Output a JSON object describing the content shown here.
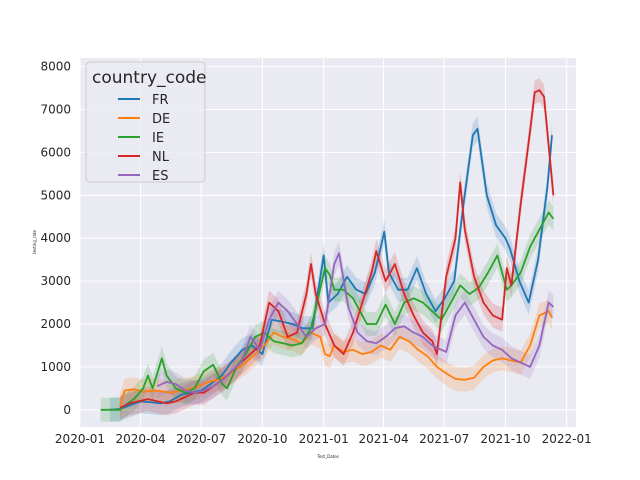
{
  "chart_data": {
    "type": "line",
    "xlabel": "Test_Dates",
    "ylabel": "testing_rate",
    "xlim": [
      "2020-01-01",
      "2022-01-15"
    ],
    "ylim": [
      -400,
      8200
    ],
    "grid": true,
    "x_ticks": [
      "2020-01",
      "2020-04",
      "2020-07",
      "2020-10",
      "2021-01",
      "2021-04",
      "2021-07",
      "2021-10",
      "2022-01"
    ],
    "y_ticks": [
      0,
      1000,
      2000,
      3000,
      4000,
      5000,
      6000,
      7000,
      8000
    ],
    "legend": {
      "title": "country_code",
      "placement": "top-left"
    },
    "series": [
      {
        "name": "FR",
        "color": "#1f77b4",
        "points": [
          [
            "2020-02-15",
            0
          ],
          [
            "2020-03-01",
            20
          ],
          [
            "2020-03-15",
            100
          ],
          [
            "2020-04-01",
            200
          ],
          [
            "2020-04-15",
            180
          ],
          [
            "2020-05-01",
            150
          ],
          [
            "2020-05-15",
            200
          ],
          [
            "2020-06-01",
            350
          ],
          [
            "2020-06-15",
            400
          ],
          [
            "2020-07-01",
            450
          ],
          [
            "2020-07-15",
            600
          ],
          [
            "2020-08-01",
            800
          ],
          [
            "2020-08-15",
            1100
          ],
          [
            "2020-09-01",
            1400
          ],
          [
            "2020-09-15",
            1500
          ],
          [
            "2020-10-01",
            1300
          ],
          [
            "2020-10-15",
            2100
          ],
          [
            "2020-11-01",
            2050
          ],
          [
            "2020-11-15",
            2000
          ],
          [
            "2020-12-01",
            1900
          ],
          [
            "2020-12-15",
            1900
          ],
          [
            "2021-01-01",
            3600
          ],
          [
            "2021-01-08",
            2500
          ],
          [
            "2021-01-22",
            2700
          ],
          [
            "2021-02-05",
            3100
          ],
          [
            "2021-02-19",
            2800
          ],
          [
            "2021-03-05",
            2700
          ],
          [
            "2021-03-19",
            3200
          ],
          [
            "2021-04-02",
            4150
          ],
          [
            "2021-04-09",
            3200
          ],
          [
            "2021-04-23",
            2800
          ],
          [
            "2021-05-07",
            2800
          ],
          [
            "2021-05-21",
            3300
          ],
          [
            "2021-06-04",
            2700
          ],
          [
            "2021-06-18",
            2300
          ],
          [
            "2021-07-02",
            2600
          ],
          [
            "2021-07-16",
            3000
          ],
          [
            "2021-07-30",
            4800
          ],
          [
            "2021-08-13",
            6400
          ],
          [
            "2021-08-20",
            6550
          ],
          [
            "2021-09-03",
            5000
          ],
          [
            "2021-09-17",
            4300
          ],
          [
            "2021-10-01",
            4000
          ],
          [
            "2021-10-08",
            3750
          ],
          [
            "2021-10-22",
            3000
          ],
          [
            "2021-11-05",
            2500
          ],
          [
            "2021-11-19",
            3500
          ],
          [
            "2021-12-03",
            5200
          ],
          [
            "2021-12-10",
            6400
          ]
        ]
      },
      {
        "name": "DE",
        "color": "#ff7f0e",
        "points": [
          [
            "2020-03-01",
            100
          ],
          [
            "2020-03-08",
            450
          ],
          [
            "2020-03-22",
            480
          ],
          [
            "2020-04-05",
            420
          ],
          [
            "2020-04-19",
            450
          ],
          [
            "2020-05-03",
            430
          ],
          [
            "2020-05-17",
            400
          ],
          [
            "2020-05-31",
            450
          ],
          [
            "2020-06-14",
            480
          ],
          [
            "2020-06-28",
            550
          ],
          [
            "2020-07-12",
            650
          ],
          [
            "2020-07-26",
            700
          ],
          [
            "2020-08-09",
            800
          ],
          [
            "2020-08-23",
            950
          ],
          [
            "2020-09-06",
            1100
          ],
          [
            "2020-09-20",
            1300
          ],
          [
            "2020-10-04",
            1500
          ],
          [
            "2020-10-18",
            1800
          ],
          [
            "2020-11-01",
            1700
          ],
          [
            "2020-11-15",
            1650
          ],
          [
            "2020-11-29",
            1550
          ],
          [
            "2020-12-13",
            1800
          ],
          [
            "2020-12-27",
            1700
          ],
          [
            "2021-01-03",
            1300
          ],
          [
            "2021-01-10",
            1250
          ],
          [
            "2021-01-17",
            1500
          ],
          [
            "2021-01-31",
            1350
          ],
          [
            "2021-02-14",
            1400
          ],
          [
            "2021-02-28",
            1300
          ],
          [
            "2021-03-14",
            1350
          ],
          [
            "2021-03-28",
            1500
          ],
          [
            "2021-04-11",
            1400
          ],
          [
            "2021-04-25",
            1700
          ],
          [
            "2021-05-09",
            1600
          ],
          [
            "2021-05-23",
            1400
          ],
          [
            "2021-06-06",
            1250
          ],
          [
            "2021-06-20",
            1000
          ],
          [
            "2021-07-04",
            850
          ],
          [
            "2021-07-18",
            720
          ],
          [
            "2021-08-01",
            700
          ],
          [
            "2021-08-15",
            750
          ],
          [
            "2021-08-29",
            1000
          ],
          [
            "2021-09-12",
            1150
          ],
          [
            "2021-09-26",
            1200
          ],
          [
            "2021-10-10",
            1150
          ],
          [
            "2021-10-24",
            1100
          ],
          [
            "2021-11-07",
            1500
          ],
          [
            "2021-11-21",
            2200
          ],
          [
            "2021-12-05",
            2300
          ],
          [
            "2021-12-10",
            2150
          ]
        ]
      },
      {
        "name": "IE",
        "color": "#2ca02c",
        "points": [
          [
            "2020-02-01",
            0
          ],
          [
            "2020-03-01",
            0
          ],
          [
            "2020-03-08",
            100
          ],
          [
            "2020-03-22",
            250
          ],
          [
            "2020-04-05",
            500
          ],
          [
            "2020-04-12",
            800
          ],
          [
            "2020-04-19",
            500
          ],
          [
            "2020-05-03",
            1200
          ],
          [
            "2020-05-10",
            800
          ],
          [
            "2020-05-24",
            500
          ],
          [
            "2020-06-07",
            400
          ],
          [
            "2020-06-21",
            500
          ],
          [
            "2020-07-05",
            900
          ],
          [
            "2020-07-19",
            1050
          ],
          [
            "2020-08-02",
            600
          ],
          [
            "2020-08-09",
            500
          ],
          [
            "2020-08-23",
            1000
          ],
          [
            "2020-09-06",
            1300
          ],
          [
            "2020-09-20",
            1700
          ],
          [
            "2020-10-04",
            1800
          ],
          [
            "2020-10-18",
            1600
          ],
          [
            "2020-11-01",
            1550
          ],
          [
            "2020-11-15",
            1500
          ],
          [
            "2020-11-29",
            1550
          ],
          [
            "2020-12-13",
            1900
          ],
          [
            "2021-01-03",
            3300
          ],
          [
            "2021-01-10",
            3150
          ],
          [
            "2021-01-17",
            2800
          ],
          [
            "2021-01-31",
            2800
          ],
          [
            "2021-02-14",
            2600
          ],
          [
            "2021-02-28",
            2200
          ],
          [
            "2021-03-07",
            2000
          ],
          [
            "2021-03-21",
            2000
          ],
          [
            "2021-04-04",
            2450
          ],
          [
            "2021-04-18",
            2000
          ],
          [
            "2021-05-02",
            2500
          ],
          [
            "2021-05-16",
            2600
          ],
          [
            "2021-05-30",
            2500
          ],
          [
            "2021-06-13",
            2300
          ],
          [
            "2021-06-27",
            2100
          ],
          [
            "2021-07-11",
            2500
          ],
          [
            "2021-07-25",
            2900
          ],
          [
            "2021-08-08",
            2700
          ],
          [
            "2021-08-22",
            2850
          ],
          [
            "2021-09-05",
            3200
          ],
          [
            "2021-09-19",
            3600
          ],
          [
            "2021-10-03",
            2800
          ],
          [
            "2021-10-10",
            2900
          ],
          [
            "2021-10-24",
            3200
          ],
          [
            "2021-11-07",
            3800
          ],
          [
            "2021-11-21",
            4200
          ],
          [
            "2021-12-05",
            4600
          ],
          [
            "2021-12-12",
            4450
          ]
        ]
      },
      {
        "name": "NL",
        "color": "#d62728",
        "points": [
          [
            "2020-03-01",
            50
          ],
          [
            "2020-03-15",
            150
          ],
          [
            "2020-03-29",
            200
          ],
          [
            "2020-04-12",
            250
          ],
          [
            "2020-04-26",
            200
          ],
          [
            "2020-05-10",
            150
          ],
          [
            "2020-05-24",
            200
          ],
          [
            "2020-06-07",
            300
          ],
          [
            "2020-06-21",
            400
          ],
          [
            "2020-07-05",
            400
          ],
          [
            "2020-07-19",
            550
          ],
          [
            "2020-08-02",
            700
          ],
          [
            "2020-08-16",
            900
          ],
          [
            "2020-08-30",
            1100
          ],
          [
            "2020-09-13",
            1300
          ],
          [
            "2020-09-27",
            1500
          ],
          [
            "2020-10-11",
            2500
          ],
          [
            "2020-10-25",
            2300
          ],
          [
            "2020-11-08",
            1700
          ],
          [
            "2020-11-22",
            1800
          ],
          [
            "2020-12-06",
            2700
          ],
          [
            "2020-12-13",
            3400
          ],
          [
            "2020-12-20",
            2700
          ],
          [
            "2021-01-03",
            2000
          ],
          [
            "2021-01-17",
            1500
          ],
          [
            "2021-01-31",
            1300
          ],
          [
            "2021-02-14",
            1800
          ],
          [
            "2021-02-28",
            2500
          ],
          [
            "2021-03-14",
            3200
          ],
          [
            "2021-03-21",
            3700
          ],
          [
            "2021-04-04",
            3000
          ],
          [
            "2021-04-18",
            3400
          ],
          [
            "2021-05-02",
            2700
          ],
          [
            "2021-05-16",
            2200
          ],
          [
            "2021-05-30",
            1800
          ],
          [
            "2021-06-13",
            1600
          ],
          [
            "2021-06-20",
            1300
          ],
          [
            "2021-07-04",
            3100
          ],
          [
            "2021-07-18",
            4000
          ],
          [
            "2021-07-25",
            5300
          ],
          [
            "2021-08-01",
            4200
          ],
          [
            "2021-08-15",
            3100
          ],
          [
            "2021-08-29",
            2500
          ],
          [
            "2021-09-12",
            2200
          ],
          [
            "2021-09-26",
            2100
          ],
          [
            "2021-10-03",
            3300
          ],
          [
            "2021-10-10",
            2900
          ],
          [
            "2021-10-24",
            4800
          ],
          [
            "2021-11-07",
            6500
          ],
          [
            "2021-11-14",
            7400
          ],
          [
            "2021-11-21",
            7450
          ],
          [
            "2021-11-28",
            7300
          ],
          [
            "2021-12-12",
            5000
          ]
        ]
      },
      {
        "name": "ES",
        "color": "#9467bd",
        "points": [
          [
            "2020-04-26",
            550
          ],
          [
            "2020-05-10",
            650
          ],
          [
            "2020-05-24",
            600
          ],
          [
            "2020-06-07",
            450
          ],
          [
            "2020-06-21",
            400
          ],
          [
            "2020-07-05",
            450
          ],
          [
            "2020-07-19",
            550
          ],
          [
            "2020-08-02",
            700
          ],
          [
            "2020-08-16",
            900
          ],
          [
            "2020-08-30",
            1100
          ],
          [
            "2020-09-13",
            1700
          ],
          [
            "2020-09-27",
            1400
          ],
          [
            "2020-10-11",
            2100
          ],
          [
            "2020-10-25",
            2500
          ],
          [
            "2020-11-08",
            2300
          ],
          [
            "2020-11-22",
            2000
          ],
          [
            "2020-12-06",
            1700
          ],
          [
            "2020-12-20",
            1900
          ],
          [
            "2021-01-03",
            2000
          ],
          [
            "2021-01-17",
            3400
          ],
          [
            "2021-01-24",
            3650
          ],
          [
            "2021-02-07",
            2400
          ],
          [
            "2021-02-21",
            1800
          ],
          [
            "2021-03-07",
            1600
          ],
          [
            "2021-03-21",
            1550
          ],
          [
            "2021-04-04",
            1700
          ],
          [
            "2021-04-18",
            1900
          ],
          [
            "2021-05-02",
            1950
          ],
          [
            "2021-05-16",
            1800
          ],
          [
            "2021-05-30",
            1700
          ],
          [
            "2021-06-13",
            1500
          ],
          [
            "2021-06-27",
            1400
          ],
          [
            "2021-07-04",
            1350
          ],
          [
            "2021-07-18",
            2200
          ],
          [
            "2021-08-01",
            2500
          ],
          [
            "2021-08-15",
            2100
          ],
          [
            "2021-08-29",
            1700
          ],
          [
            "2021-09-12",
            1500
          ],
          [
            "2021-09-26",
            1400
          ],
          [
            "2021-10-10",
            1200
          ],
          [
            "2021-10-24",
            1100
          ],
          [
            "2021-11-07",
            1000
          ],
          [
            "2021-11-21",
            1500
          ],
          [
            "2021-11-28",
            2000
          ],
          [
            "2021-12-05",
            2500
          ],
          [
            "2021-12-12",
            2400
          ]
        ]
      }
    ]
  }
}
